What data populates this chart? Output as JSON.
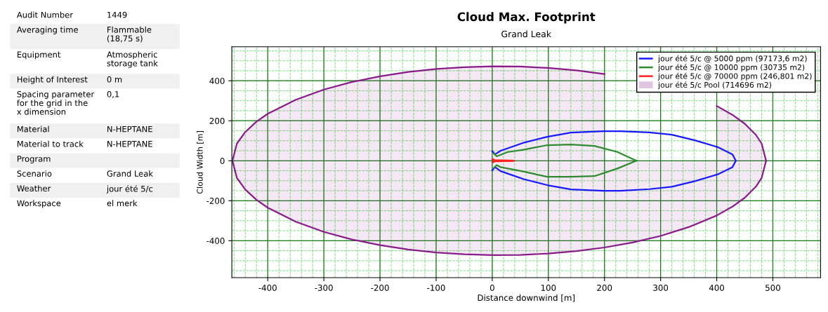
{
  "chart_data": [
    {
      "type": "other",
      "categories": [
        "Audit Number",
        "Averaging time",
        "Equipment",
        "Height of Interest",
        "Spacing parameter for the grid in the x dimension",
        "Material",
        "Material to track",
        "Program",
        "Scenario",
        "Weather",
        "Workspace"
      ],
      "value_labels": [
        "1449",
        "Flammable (18,75 s)",
        "Atmospheric storage tank",
        "0 m",
        "0,1",
        "N-HEPTANE",
        "N-HEPTANE",
        null,
        "Grand Leak",
        "jour été 5/c",
        "el merk"
      ]
    },
    {
      "type": "line",
      "title": "Cloud Max. Footprint",
      "subtitle": "Grand Leak",
      "xlabel": "Distance downwind [m]",
      "ylabel": "Cloud Width [m]",
      "xlim": [
        -464,
        585
      ],
      "ylim": [
        -585,
        570
      ],
      "xticks": [
        -400,
        -300,
        -200,
        -100,
        0,
        100,
        200,
        300,
        400,
        500
      ],
      "yticks": [
        -400,
        -200,
        0,
        200,
        400
      ],
      "grid": true,
      "legend": "top right",
      "marker": "none",
      "line_style": "solid",
      "series": [
        {
          "name": "jour été 5/c @ 5000 ppm (97173,6 m2)",
          "color": "#1a1aff",
          "x": [
            0,
            5,
            15,
            57,
            98,
            140,
            198,
            228,
            280,
            320,
            361,
            403,
            428,
            434
          ],
          "values": [
            48,
            32,
            50,
            91,
            120,
            141,
            148,
            148,
            142,
            130,
            102,
            67,
            32,
            0
          ]
        },
        {
          "color": "#1a1aff",
          "x": [
            0,
            5,
            15,
            57,
            98,
            140,
            198,
            228,
            280,
            320,
            361,
            403,
            428,
            434
          ],
          "values": [
            -48,
            -32,
            -52,
            -93,
            -122,
            -143,
            -150,
            -150,
            -142,
            -130,
            -102,
            -67,
            -32,
            0
          ]
        },
        {
          "name": "jour été 5/c @ 10000 ppm (30735 m2)",
          "color": "#2e8b2e",
          "x": [
            3,
            8,
            27,
            57,
            98,
            140,
            182,
            223,
            257
          ],
          "values": [
            35,
            22,
            43,
            56,
            78,
            81,
            74,
            44,
            0
          ]
        },
        {
          "color": "#2e8b2e",
          "x": [
            3,
            8,
            15,
            57,
            98,
            140,
            182,
            223,
            257
          ],
          "values": [
            -35,
            -22,
            -32,
            -55,
            -80,
            -80,
            -77,
            -39,
            0
          ]
        },
        {
          "name": "jour été 5/c @ 70000 ppm (246,801 m2)",
          "color": "#ff2020",
          "x": [
            0,
            2,
            4,
            38
          ],
          "values": [
            5,
            8,
            3,
            1
          ]
        },
        {
          "color": "#ff2020",
          "x": [
            0,
            2,
            4,
            38
          ],
          "values": [
            -5,
            -8,
            -3,
            -1
          ]
        },
        {
          "name": "jour été 5/c Pool (714696 m2)",
          "type": "area",
          "color": "#8b1a8b",
          "x": [
            -463,
            -455,
            -440,
            -420,
            -400,
            -350,
            -300,
            -250,
            -200,
            -150,
            -100,
            -50,
            0,
            50,
            100,
            150,
            200,
            250,
            300,
            350,
            400,
            430,
            450,
            470,
            480,
            488
          ],
          "values": [
            0,
            86,
            144,
            196,
            235,
            305,
            356,
            394,
            422,
            444,
            459,
            468,
            472,
            471,
            464,
            452,
            434,
            null,
            null,
            null,
            274,
            226,
            185,
            129,
            86,
            0
          ]
        },
        {
          "type": "area",
          "color": "#8b1a8b",
          "x": [
            -463,
            -455,
            -440,
            -420,
            -400,
            -350,
            -300,
            -250,
            -200,
            -150,
            -100,
            -50,
            0,
            50,
            100,
            150,
            200,
            250,
            300,
            350,
            400,
            430,
            450,
            470,
            480,
            488
          ],
          "values": [
            0,
            -86,
            -144,
            -196,
            -235,
            -305,
            -356,
            -394,
            -422,
            -444,
            -459,
            -468,
            -472,
            -471,
            -464,
            -452,
            -434,
            -409,
            -376,
            -332,
            -274,
            -226,
            -185,
            -129,
            -86,
            0
          ]
        }
      ]
    }
  ]
}
